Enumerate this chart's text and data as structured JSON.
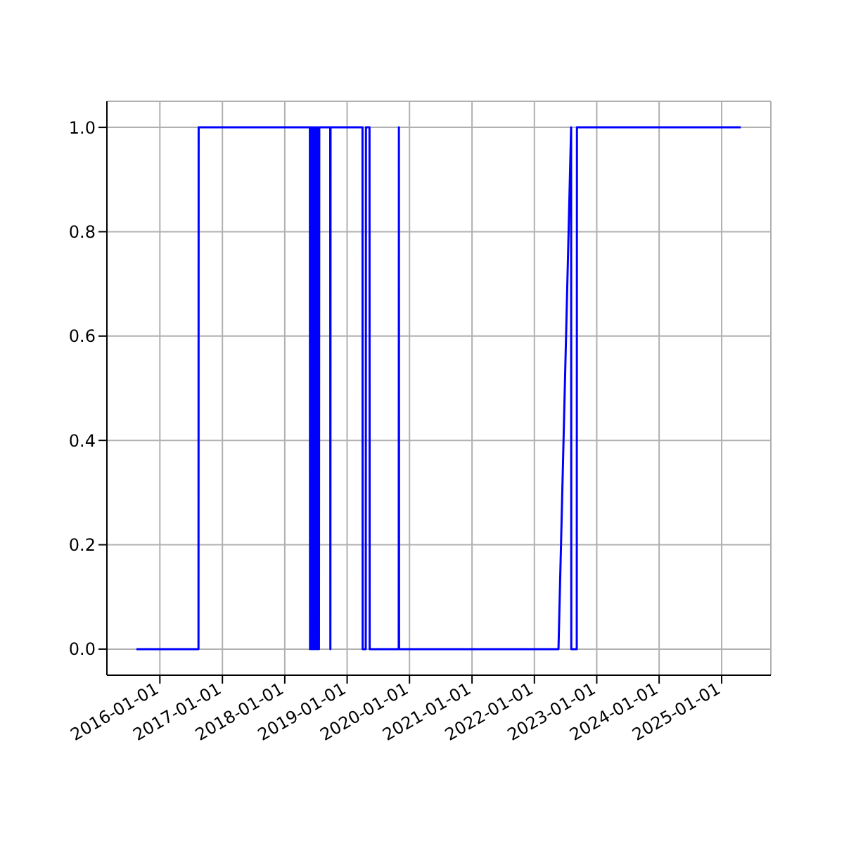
{
  "chart_data": {
    "type": "line",
    "x": [
      "2015-08-17",
      "2016-08-14",
      "2016-08-15",
      "2018-05-28",
      "2018-05-29",
      "2018-06-02",
      "2018-06-05",
      "2018-06-09",
      "2018-06-12",
      "2018-06-16",
      "2018-06-19",
      "2018-06-23",
      "2018-06-26",
      "2018-06-30",
      "2018-07-03",
      "2018-07-07",
      "2018-07-10",
      "2018-07-14",
      "2018-07-17",
      "2018-07-20",
      "2018-07-22",
      "2018-09-24",
      "2018-09-25",
      "2018-09-26",
      "2019-04-01",
      "2019-04-02",
      "2019-04-20",
      "2019-04-21",
      "2019-05-12",
      "2019-05-13",
      "2019-10-30",
      "2019-10-31",
      "2019-11-01",
      "2022-05-22",
      "2022-08-04",
      "2022-08-05",
      "2022-09-06",
      "2022-09-07",
      "2025-04-23"
    ],
    "series": [
      {
        "color": "#0000ff",
        "values": [
          0,
          0,
          1,
          1,
          0,
          1,
          0,
          1,
          0,
          1,
          0,
          1,
          0,
          1,
          0,
          1,
          0,
          1,
          0,
          0,
          1,
          1,
          0,
          1,
          1,
          0,
          0,
          1,
          1,
          0,
          0,
          1,
          0,
          0,
          1,
          0,
          0,
          1,
          1
        ]
      }
    ],
    "xlim": [
      "2015-02-25",
      "2025-10-16"
    ],
    "xticks": [
      "2016-01-01",
      "2017-01-01",
      "2018-01-01",
      "2019-01-01",
      "2020-01-01",
      "2021-01-01",
      "2022-01-01",
      "2023-01-01",
      "2024-01-01",
      "2025-01-01"
    ],
    "ylim": [
      -0.05,
      1.05
    ],
    "yticks": [
      {
        "value": 0,
        "label": "0.0"
      },
      {
        "value": 0.2,
        "label": "0.2"
      },
      {
        "value": 0.4,
        "label": "0.4"
      },
      {
        "value": 0.6,
        "label": "0.6"
      },
      {
        "value": 0.8,
        "label": "0.8"
      },
      {
        "value": 1,
        "label": "1.0"
      }
    ],
    "grid": true,
    "marker": "none",
    "line_style": "solid"
  }
}
